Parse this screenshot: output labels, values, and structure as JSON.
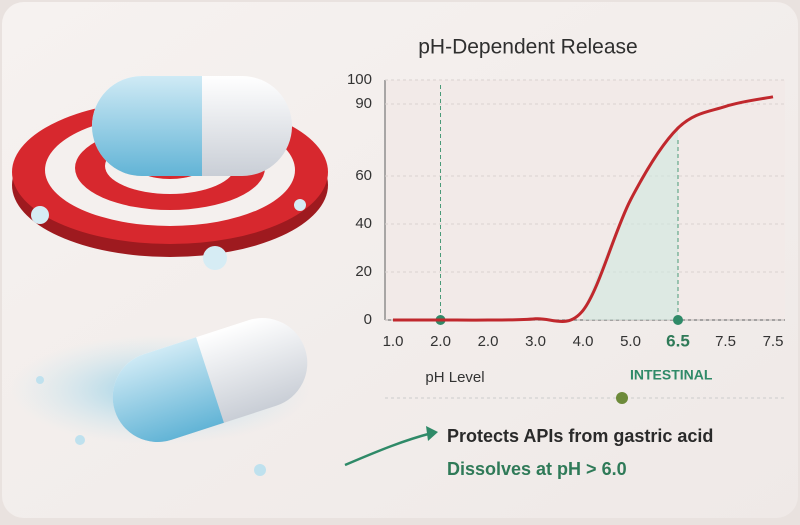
{
  "chart_data": {
    "type": "line",
    "title": "pH-Dependent Release",
    "xlabel": "pH Level",
    "categories": [
      "1.0",
      "2.0",
      "2.0",
      "3.0",
      "4.0",
      "5.0",
      "6.5",
      "7.5",
      "7.5"
    ],
    "series": [
      {
        "name": "Release",
        "color": "#c0282d",
        "values": [
          0,
          0,
          0,
          0.5,
          4,
          50,
          80,
          89,
          93
        ]
      }
    ],
    "ylim": [
      0,
      100
    ],
    "yticks": [
      0,
      20,
      40,
      60,
      90,
      100
    ],
    "grid": true,
    "annotations": [
      "INTESTINAL"
    ],
    "caption": [
      "Protects APIs from gastric acid",
      "Dissolves at pH > 6.0"
    ]
  }
}
